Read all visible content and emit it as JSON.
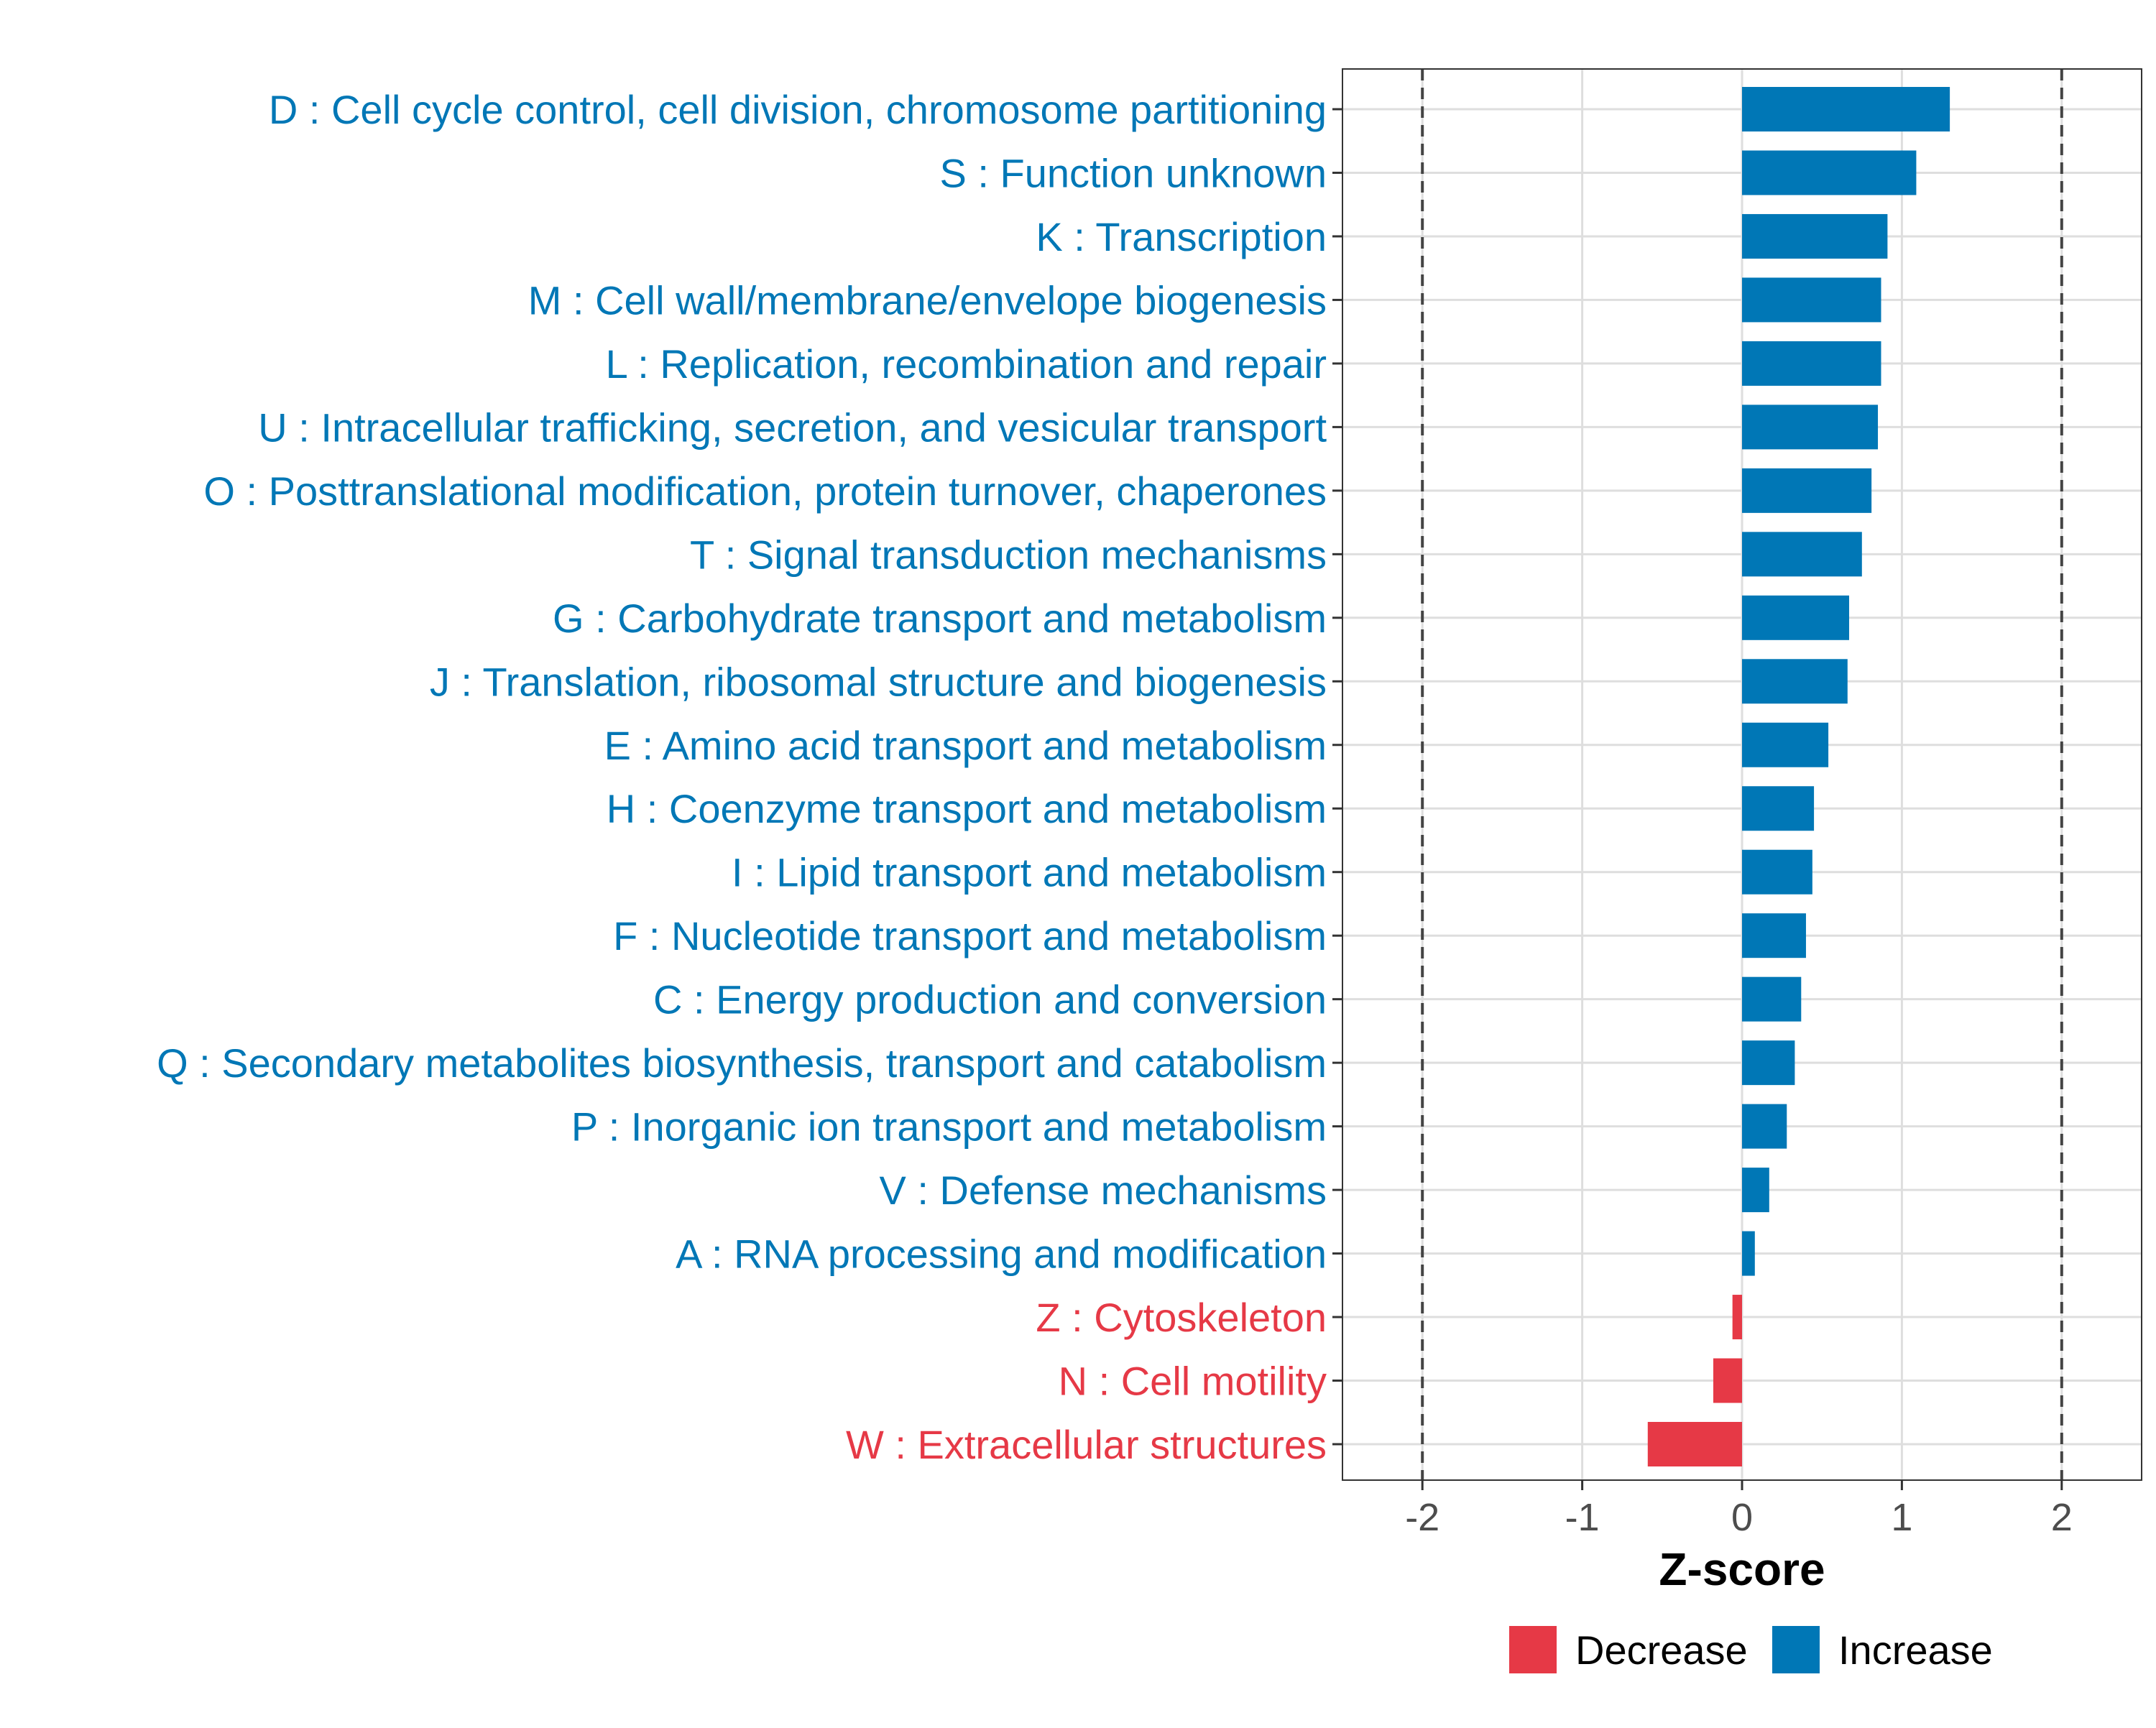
{
  "chart_data": {
    "type": "bar",
    "orientation": "horizontal",
    "title": "",
    "xlabel": "Z-score",
    "ylabel": "",
    "xlim": [
      -2.5,
      2.5
    ],
    "x_ticks": [
      -2,
      -1,
      0,
      1,
      2
    ],
    "x_tick_labels": [
      "-2",
      "-1",
      "0",
      "1",
      "2"
    ],
    "reference_lines": [
      -2,
      2
    ],
    "grid": true,
    "categories": [
      "D : Cell cycle control, cell division, chromosome partitioning",
      "S : Function unknown",
      "K : Transcription",
      "M : Cell wall/membrane/envelope biogenesis",
      "L : Replication, recombination and repair",
      "U : Intracellular trafficking, secretion, and vesicular transport",
      "O : Posttranslational modification, protein turnover, chaperones",
      "T : Signal transduction mechanisms",
      "G : Carbohydrate transport and metabolism",
      "J : Translation, ribosomal structure and biogenesis",
      "E : Amino acid transport and metabolism",
      "H : Coenzyme transport and metabolism",
      "I : Lipid transport and metabolism",
      "F : Nucleotide transport and metabolism",
      "C : Energy production and conversion",
      "Q : Secondary metabolites biosynthesis, transport and catabolism",
      "P : Inorganic ion transport and metabolism",
      "V : Defense mechanisms",
      "A : RNA processing and modification",
      "Z : Cytoskeleton",
      "N : Cell motility",
      "W : Extracellular structures"
    ],
    "values": [
      1.3,
      1.09,
      0.91,
      0.87,
      0.87,
      0.85,
      0.81,
      0.75,
      0.67,
      0.66,
      0.54,
      0.45,
      0.44,
      0.4,
      0.37,
      0.33,
      0.28,
      0.17,
      0.08,
      -0.06,
      -0.18,
      -0.59
    ],
    "legend": {
      "position": "bottom",
      "entries": [
        {
          "label": "Decrease",
          "color": "#E63946"
        },
        {
          "label": "Increase",
          "color": "#0077B6"
        }
      ]
    },
    "colors": {
      "decrease": "#E63946",
      "increase": "#0077B6"
    }
  }
}
